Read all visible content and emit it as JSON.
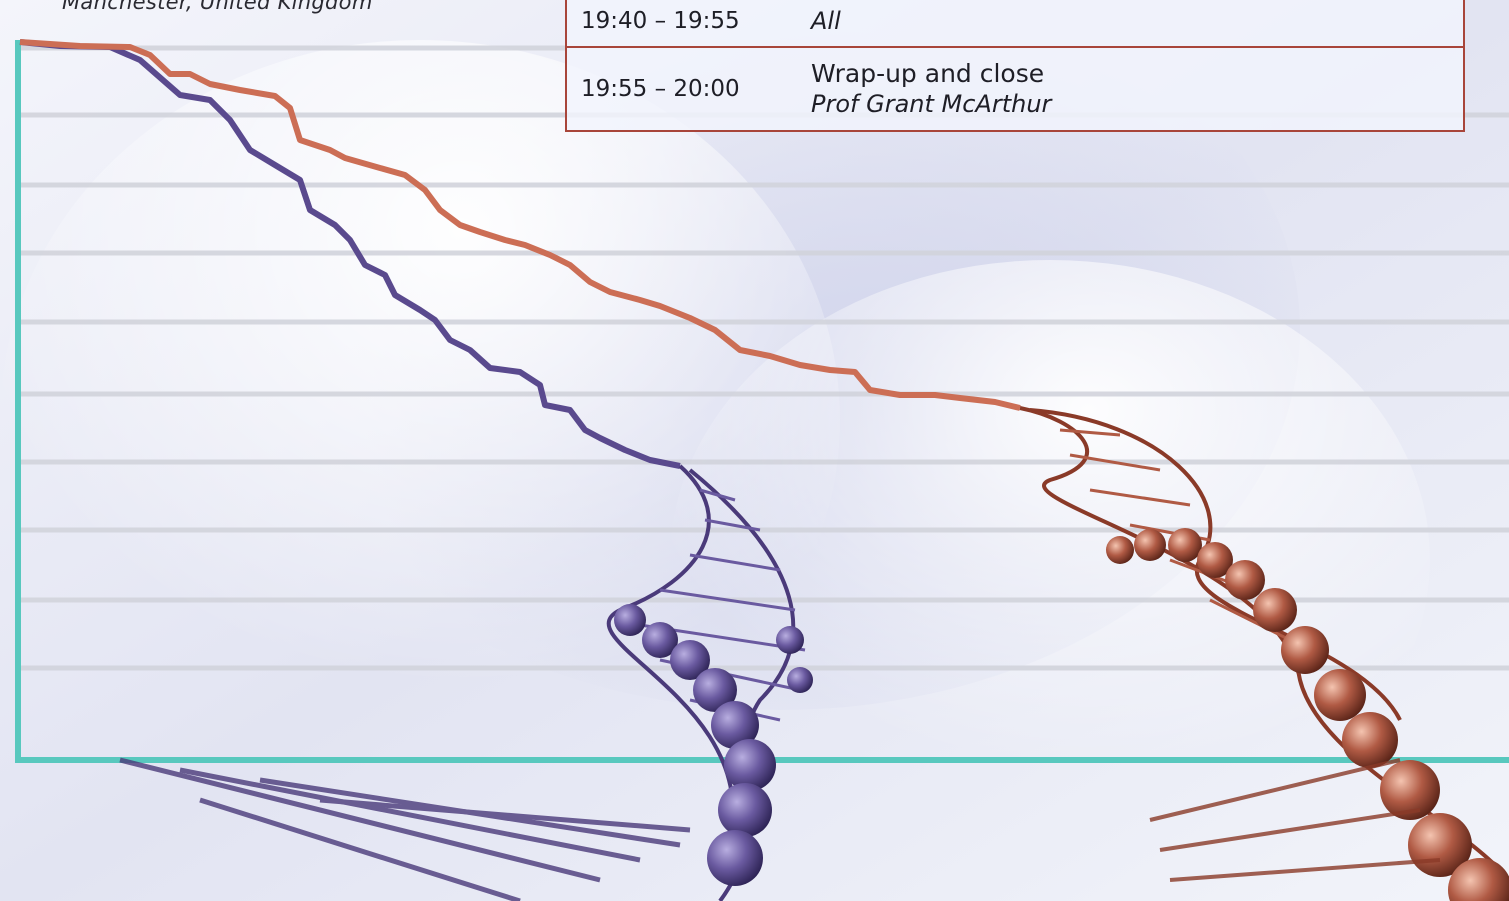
{
  "location": "Manchester, United Kingdom",
  "agenda": [
    {
      "time": "19:40 – 19:55",
      "title": "",
      "speaker": "All"
    },
    {
      "time": "19:55 – 20:00",
      "title": "Wrap-up and close",
      "speaker": "Prof Grant McArthur"
    }
  ],
  "colors": {
    "accent_teal": "#58c8be",
    "curve_purple": "#5a4a8e",
    "curve_orange": "#cc6e55",
    "table_border": "#a8453a",
    "gridline": "#d2d4dc"
  },
  "decorations": [
    "dna-helix-purple",
    "dna-helix-orange"
  ]
}
